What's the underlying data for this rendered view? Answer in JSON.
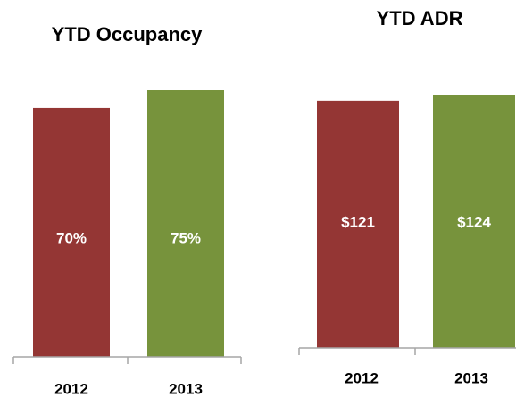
{
  "chart_data": [
    {
      "type": "bar",
      "title": "YTD Occupancy",
      "categories": [
        "2012",
        "2013"
      ],
      "values": [
        70,
        75
      ],
      "value_labels": [
        "70%",
        "75%"
      ],
      "colors": [
        "#943634",
        "#77933c"
      ]
    },
    {
      "type": "bar",
      "title": "YTD ADR",
      "categories": [
        "2012",
        "2013"
      ],
      "values": [
        121,
        124
      ],
      "value_labels": [
        "$121",
        "$124"
      ],
      "colors": [
        "#943634",
        "#77933c"
      ]
    }
  ]
}
